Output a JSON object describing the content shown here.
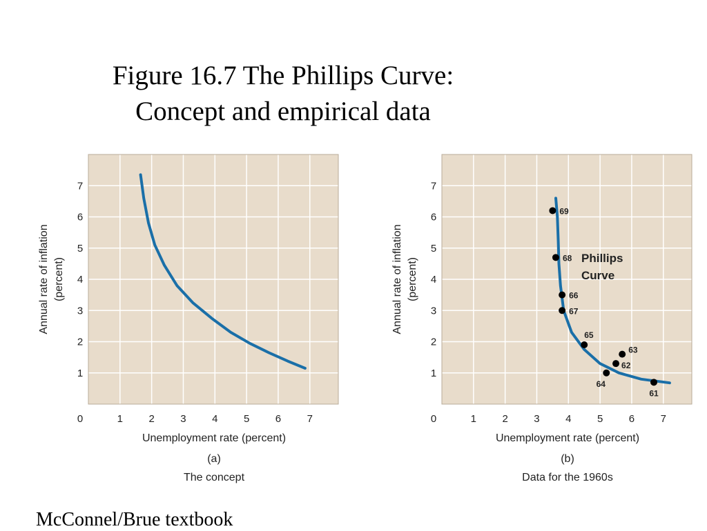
{
  "slide": {
    "title_line1": "Figure 16.7 The Phillips Curve:",
    "title_line2": "Concept and empirical data",
    "footer": "McConnel/Brue textbook"
  },
  "colors": {
    "plot_bg": "#e8dccb",
    "grid": "#ffffff",
    "curve": "#1a6fa8",
    "point": "#000000",
    "text": "#222222"
  },
  "chart_data": [
    {
      "type": "line",
      "panel_label": "(a)",
      "caption": "The concept",
      "xlabel": "Unemployment rate (percent)",
      "ylabel_line1": "Annual rate of inflation",
      "ylabel_line2": "(percent)",
      "xlim": [
        0,
        7.9
      ],
      "ylim": [
        0,
        8.0
      ],
      "x_ticks": [
        "0",
        "1",
        "2",
        "3",
        "4",
        "5",
        "6",
        "7"
      ],
      "y_ticks": [
        "1",
        "2",
        "3",
        "4",
        "5",
        "6",
        "7"
      ],
      "grid": true,
      "series": [
        {
          "points": [
            [
              1.65,
              7.35
            ],
            [
              1.75,
              6.6
            ],
            [
              1.9,
              5.8
            ],
            [
              2.1,
              5.1
            ],
            [
              2.4,
              4.45
            ],
            [
              2.8,
              3.8
            ],
            [
              3.3,
              3.25
            ],
            [
              3.9,
              2.75
            ],
            [
              4.5,
              2.3
            ],
            [
              5.1,
              1.95
            ],
            [
              5.7,
              1.65
            ],
            [
              6.3,
              1.38
            ],
            [
              6.85,
              1.15
            ]
          ]
        }
      ]
    },
    {
      "type": "scatter",
      "panel_label": "(b)",
      "caption": "Data for the 1960s",
      "xlabel": "Unemployment rate (percent)",
      "ylabel_line1": "Annual rate of inflation",
      "ylabel_line2": "(percent)",
      "xlim": [
        0,
        7.9
      ],
      "ylim": [
        0,
        8.0
      ],
      "x_ticks": [
        "0",
        "1",
        "2",
        "3",
        "4",
        "5",
        "6",
        "7"
      ],
      "y_ticks": [
        "1",
        "2",
        "3",
        "4",
        "5",
        "6",
        "7"
      ],
      "grid": true,
      "annotation_line1": "Phillips",
      "annotation_line2": "Curve",
      "curve": [
        [
          3.6,
          6.6
        ],
        [
          3.65,
          6.0
        ],
        [
          3.68,
          5.2
        ],
        [
          3.7,
          4.5
        ],
        [
          3.75,
          3.8
        ],
        [
          3.85,
          3.0
        ],
        [
          4.1,
          2.3
        ],
        [
          4.5,
          1.75
        ],
        [
          5.0,
          1.3
        ],
        [
          5.6,
          1.0
        ],
        [
          6.3,
          0.8
        ],
        [
          7.2,
          0.68
        ]
      ],
      "points": [
        {
          "label": "61",
          "x": 6.7,
          "y": 0.7
        },
        {
          "label": "62",
          "x": 5.5,
          "y": 1.3
        },
        {
          "label": "63",
          "x": 5.7,
          "y": 1.6
        },
        {
          "label": "64",
          "x": 5.2,
          "y": 1.0
        },
        {
          "label": "65",
          "x": 4.5,
          "y": 1.9
        },
        {
          "label": "66",
          "x": 3.8,
          "y": 3.5
        },
        {
          "label": "67",
          "x": 3.8,
          "y": 3.0
        },
        {
          "label": "68",
          "x": 3.6,
          "y": 4.7
        },
        {
          "label": "69",
          "x": 3.5,
          "y": 6.2
        }
      ]
    }
  ]
}
